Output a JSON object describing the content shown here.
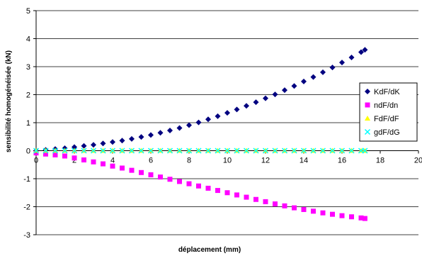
{
  "chart_data": {
    "type": "scatter",
    "xlabel": "déplacement (mm)",
    "ylabel": "sensibilité homogénéisée (kN)",
    "xlim": [
      0,
      20
    ],
    "ylim": [
      -3,
      5
    ],
    "x_ticks": [
      0,
      2,
      4,
      6,
      8,
      10,
      12,
      14,
      16,
      18,
      20
    ],
    "y_ticks": [
      5,
      4,
      3,
      2,
      1,
      0,
      -1,
      -2,
      -3
    ],
    "grid": "horizontal",
    "legend_position": "right",
    "x": [
      0,
      0.5,
      1,
      1.5,
      2,
      2.5,
      3,
      3.5,
      4,
      4.5,
      5,
      5.5,
      6,
      6.5,
      7,
      7.5,
      8,
      8.5,
      9,
      9.5,
      10,
      10.5,
      11,
      11.5,
      12,
      12.5,
      13,
      13.5,
      14,
      14.5,
      15,
      15.5,
      16,
      16.5,
      17,
      17.2
    ],
    "series": [
      {
        "name": "KdF/dK",
        "color": "#000080",
        "marker": "diamond",
        "values": [
          0,
          0.03,
          0.06,
          0.09,
          0.13,
          0.17,
          0.21,
          0.26,
          0.31,
          0.36,
          0.42,
          0.49,
          0.56,
          0.64,
          0.72,
          0.81,
          0.91,
          1.01,
          1.12,
          1.23,
          1.35,
          1.47,
          1.6,
          1.73,
          1.87,
          2.01,
          2.16,
          2.31,
          2.47,
          2.63,
          2.8,
          2.97,
          3.15,
          3.33,
          3.52,
          3.6
        ]
      },
      {
        "name": "ndF/dn",
        "color": "#ff00ff",
        "marker": "square",
        "values": [
          -0.08,
          -0.12,
          -0.15,
          -0.19,
          -0.26,
          -0.33,
          -0.4,
          -0.47,
          -0.55,
          -0.62,
          -0.7,
          -0.78,
          -0.86,
          -0.94,
          -1.02,
          -1.1,
          -1.18,
          -1.26,
          -1.34,
          -1.42,
          -1.5,
          -1.58,
          -1.66,
          -1.74,
          -1.82,
          -1.9,
          -1.97,
          -2.04,
          -2.1,
          -2.16,
          -2.22,
          -2.27,
          -2.32,
          -2.36,
          -2.4,
          -2.42
        ]
      },
      {
        "name": "FdF/dF",
        "color": "#ffff00",
        "marker": "triangle",
        "values": [
          0,
          0,
          0,
          0,
          0,
          0,
          0,
          0,
          0,
          0,
          0,
          0,
          0,
          0,
          0,
          0,
          0,
          0,
          0,
          0,
          0,
          0,
          0,
          0,
          0,
          0,
          0,
          0,
          0,
          0,
          0,
          0,
          0,
          0,
          0,
          0
        ]
      },
      {
        "name": "gdF/dG",
        "color": "#00ffff",
        "marker": "x",
        "values": [
          0,
          0,
          0,
          0,
          0,
          0,
          0,
          0,
          0,
          0,
          0,
          0,
          0,
          0,
          0,
          0,
          0,
          0,
          0,
          0,
          0,
          0,
          0,
          0,
          0,
          0,
          0,
          0,
          0,
          0,
          0,
          0,
          0,
          0,
          0,
          0
        ]
      }
    ]
  }
}
